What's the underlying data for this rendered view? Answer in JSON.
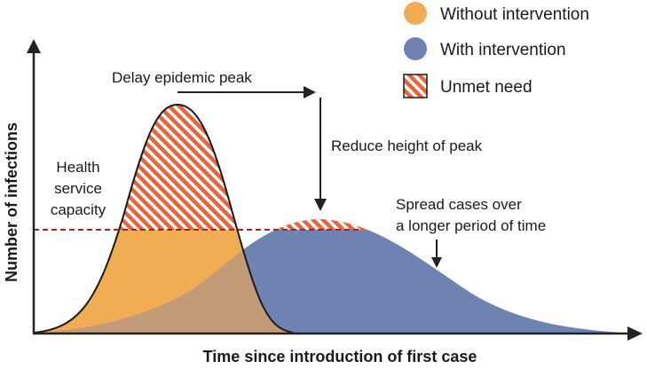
{
  "legend": [
    {
      "label": "Without intervention",
      "color": "#f0ad54",
      "swatch": "circle"
    },
    {
      "label": "With intervention",
      "color": "#6f83b3",
      "swatch": "circle"
    },
    {
      "label": "Unmet need",
      "color": "#e8643a",
      "swatch": "hatched-square"
    }
  ],
  "annotations": {
    "delay": "Delay epidemic peak",
    "reduce": "Reduce height of peak",
    "spread_line1": "Spread cases over",
    "spread_line2": "a longer period of time",
    "capacity_line1": "Health",
    "capacity_line2": "service",
    "capacity_line3": "capacity"
  },
  "axes": {
    "xlabel": "Time since introduction of first case",
    "ylabel": "Number of infections"
  },
  "colors": {
    "without": "#f0ad54",
    "with": "#6f83b3",
    "overlap": "#c49b78",
    "unmet": "#e8643a",
    "capacity_line": "#b02020",
    "axis": "#222222"
  }
}
